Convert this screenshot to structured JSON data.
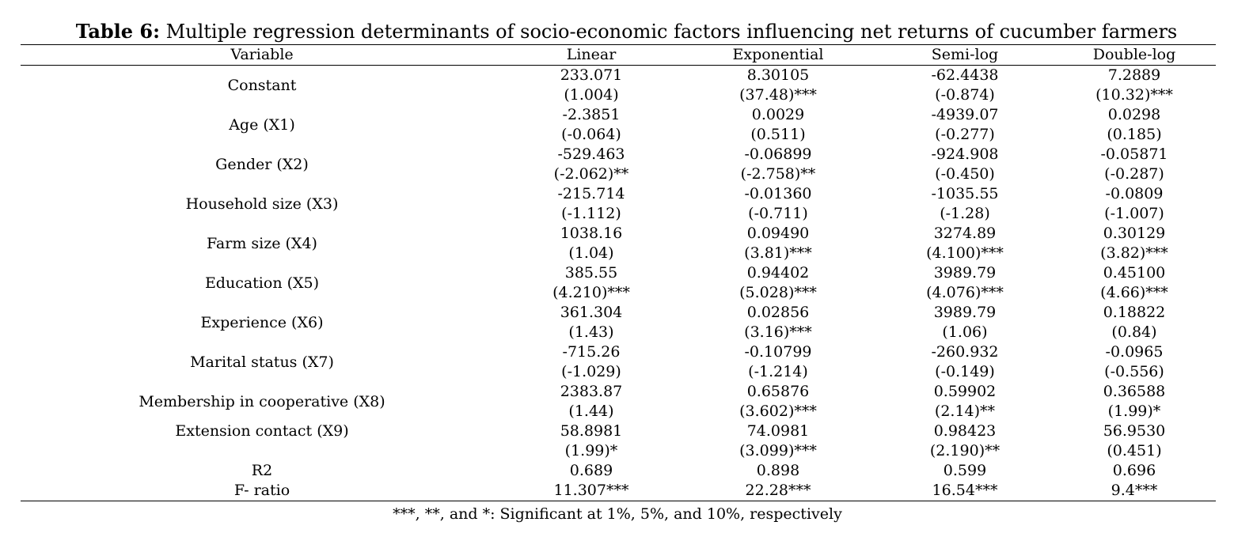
{
  "title_prefix": "Table 6:",
  "title_text": " Multiple regression determinants of socio-economic factors influencing net returns of cucumber farmers",
  "headers": [
    "Variable",
    "Linear",
    "Exponential",
    "Semi-log",
    "Double-log"
  ],
  "rows": [
    {
      "label": "Constant",
      "coef": [
        "233.071",
        "8.30105",
        "-62.4438",
        "7.2889"
      ],
      "t": [
        "(1.004)",
        "(37.48)***",
        "(-0.874)",
        "(10.32)***"
      ]
    },
    {
      "label": "Age (X1)",
      "coef": [
        "-2.3851",
        "0.0029",
        "-4939.07",
        "0.0298"
      ],
      "t": [
        "(-0.064)",
        "(0.511)",
        "(-0.277)",
        "(0.185)"
      ]
    },
    {
      "label": "Gender (X2)",
      "coef": [
        "-529.463",
        "-0.06899",
        "-924.908",
        "-0.05871"
      ],
      "t": [
        "(-2.062)**",
        "(-2.758)**",
        "(-0.450)",
        "(-0.287)"
      ]
    },
    {
      "label": "Household size (X3)",
      "coef": [
        "-215.714",
        "-0.01360",
        "-1035.55",
        "-0.0809"
      ],
      "t": [
        "(-1.112)",
        "(-0.711)",
        "(-1.28)",
        "(-1.007)"
      ]
    },
    {
      "label": "Farm size (X4)",
      "coef": [
        "1038.16",
        "0.09490",
        "3274.89",
        "0.30129"
      ],
      "t": [
        "(1.04)",
        "(3.81)***",
        "(4.100)***",
        "(3.82)***"
      ]
    },
    {
      "label": "Education (X5)",
      "coef": [
        "385.55",
        "0.94402",
        "3989.79",
        "0.45100"
      ],
      "t": [
        "(4.210)***",
        "(5.028)***",
        "(4.076)***",
        "(4.66)***"
      ]
    },
    {
      "label": "Experience (X6)",
      "coef": [
        "361.304",
        "0.02856",
        "3989.79",
        "0.18822"
      ],
      "t": [
        "(1.43)",
        "(3.16)***",
        "(1.06)",
        "(0.84)"
      ]
    },
    {
      "label": "Marital status (X7)",
      "coef": [
        "-715.26",
        "-0.10799",
        "-260.932",
        "-0.0965"
      ],
      "t": [
        "(-1.029)",
        "(-1.214)",
        "(-0.149)",
        "(-0.556)"
      ]
    },
    {
      "label": "Membership in cooperative (X8)",
      "coef": [
        "2383.87",
        "0.65876",
        "0.59902",
        "0.36588"
      ],
      "t": [
        "(1.44)",
        "(3.602)***",
        "(2.14)**",
        "(1.99)*"
      ]
    },
    {
      "label": "Extension contact (X9)",
      "coef": [
        "58.8981",
        "74.0981",
        "0.98423",
        "56.9530"
      ],
      "t": [
        "(1.99)*",
        "(3.099)***",
        "(2.190)**",
        "(0.451)"
      ],
      "label_top": true
    }
  ],
  "summary_rows": [
    {
      "label": "R2",
      "values": [
        "0.689",
        "0.898",
        "0.599",
        "0.696"
      ]
    },
    {
      "label": "F- ratio",
      "values": [
        "11.307***",
        "22.28***",
        "16.54***",
        "9.4***"
      ]
    }
  ],
  "footnote": "***, **, and *: Significant at 1%, 5%, and 10%, respectively"
}
